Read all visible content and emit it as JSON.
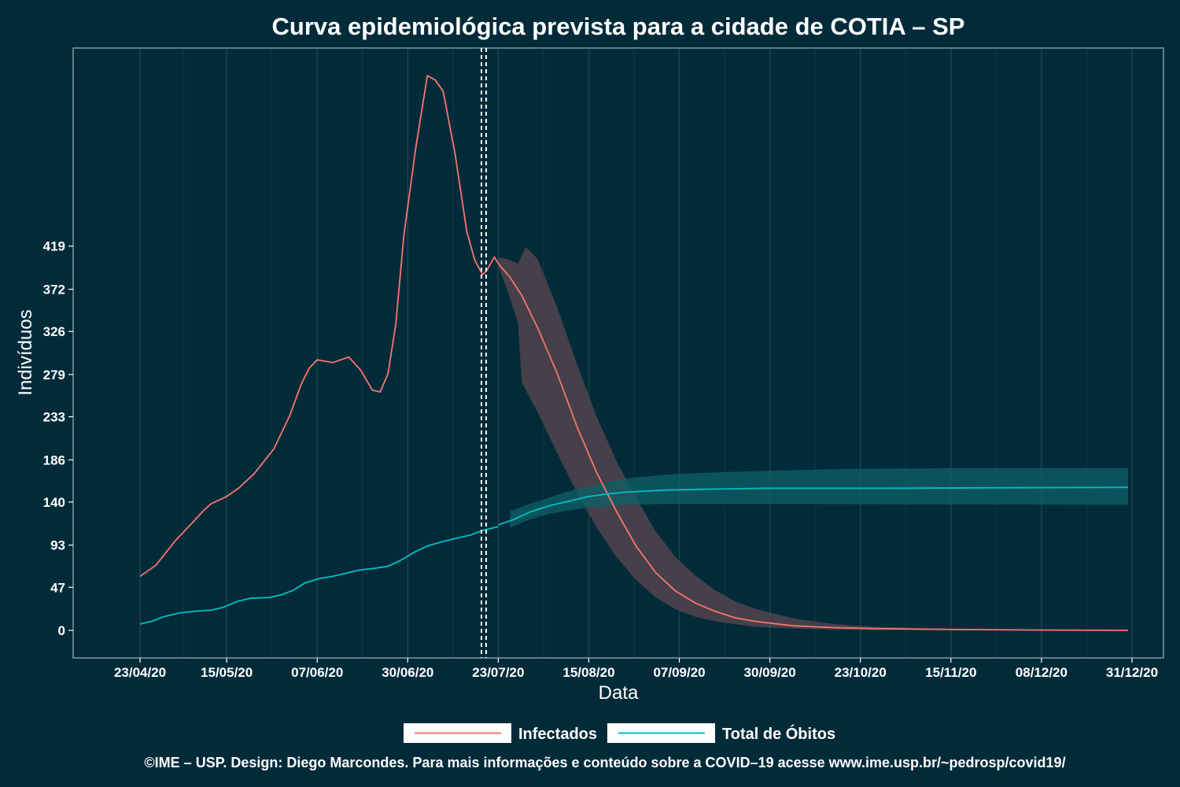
{
  "chart_data": {
    "type": "line",
    "title": "Curva epidemiológica prevista para a cidade de COTIA – SP",
    "xlabel": "Data",
    "ylabel": "Indivíduos",
    "x_ticks": [
      "23/04/20",
      "15/05/20",
      "07/06/20",
      "30/06/20",
      "23/07/20",
      "15/08/20",
      "07/09/20",
      "30/09/20",
      "23/10/20",
      "15/11/20",
      "08/12/20",
      "31/12/20"
    ],
    "y_ticks": [
      "0",
      "47",
      "93",
      "140",
      "186",
      "233",
      "279",
      "326",
      "372",
      "419"
    ],
    "ylim": [
      -30,
      635
    ],
    "xlim": [
      "2020-04-06",
      "2021-01-08"
    ],
    "grid": "vertical",
    "legend_position": "bottom",
    "forecast_start": "2020-07-22",
    "series": [
      {
        "name": "Infectados",
        "color": "#f8766d",
        "band_color": "#4d434b",
        "observed": [
          [
            "2020-04-23",
            59
          ],
          [
            "2020-04-27",
            71
          ],
          [
            "2020-05-02",
            98
          ],
          [
            "2020-05-06",
            116
          ],
          [
            "2020-05-09",
            130
          ],
          [
            "2020-05-11",
            138
          ],
          [
            "2020-05-15",
            146
          ],
          [
            "2020-05-18",
            155
          ],
          [
            "2020-05-22",
            171
          ],
          [
            "2020-05-27",
            198
          ],
          [
            "2020-05-31",
            234
          ],
          [
            "2020-06-03",
            269
          ],
          [
            "2020-06-05",
            286
          ],
          [
            "2020-06-07",
            295
          ],
          [
            "2020-06-11",
            292
          ],
          [
            "2020-06-15",
            298
          ],
          [
            "2020-06-18",
            284
          ],
          [
            "2020-06-21",
            262
          ],
          [
            "2020-06-23",
            260
          ],
          [
            "2020-06-25",
            280
          ],
          [
            "2020-06-27",
            335
          ],
          [
            "2020-06-29",
            430
          ],
          [
            "2020-07-02",
            525
          ],
          [
            "2020-07-05",
            605
          ],
          [
            "2020-07-07",
            600
          ],
          [
            "2020-07-09",
            588
          ],
          [
            "2020-07-12",
            520
          ],
          [
            "2020-07-15",
            435
          ],
          [
            "2020-07-17",
            404
          ],
          [
            "2020-07-19",
            388
          ],
          [
            "2020-07-20",
            392
          ],
          [
            "2020-07-22",
            407
          ],
          [
            "2020-07-23",
            400
          ]
        ],
        "forecast": [
          [
            "2020-07-23",
            400
          ],
          [
            "2020-07-26",
            385
          ],
          [
            "2020-07-29",
            365
          ],
          [
            "2020-08-02",
            330
          ],
          [
            "2020-08-07",
            280
          ],
          [
            "2020-08-12",
            222
          ],
          [
            "2020-08-17",
            172
          ],
          [
            "2020-08-22",
            130
          ],
          [
            "2020-08-27",
            92
          ],
          [
            "2020-09-01",
            63
          ],
          [
            "2020-09-06",
            43
          ],
          [
            "2020-09-11",
            30
          ],
          [
            "2020-09-16",
            21
          ],
          [
            "2020-09-21",
            14
          ],
          [
            "2020-09-26",
            10
          ],
          [
            "2020-10-06",
            5
          ],
          [
            "2020-10-16",
            3
          ],
          [
            "2020-10-26",
            2
          ],
          [
            "2020-11-15",
            1
          ],
          [
            "2020-12-05",
            0.5
          ],
          [
            "2020-12-30",
            0
          ]
        ],
        "band_upper": [
          [
            "2020-07-23",
            407
          ],
          [
            "2020-07-26",
            404
          ],
          [
            "2020-07-28",
            400
          ],
          [
            "2020-07-30",
            418
          ],
          [
            "2020-08-02",
            405
          ],
          [
            "2020-08-07",
            352
          ],
          [
            "2020-08-12",
            290
          ],
          [
            "2020-08-17",
            233
          ],
          [
            "2020-08-22",
            185
          ],
          [
            "2020-08-27",
            145
          ],
          [
            "2020-09-01",
            108
          ],
          [
            "2020-09-06",
            80
          ],
          [
            "2020-09-11",
            60
          ],
          [
            "2020-09-16",
            44
          ],
          [
            "2020-09-21",
            32
          ],
          [
            "2020-09-26",
            24
          ],
          [
            "2020-10-06",
            13
          ],
          [
            "2020-10-16",
            7
          ],
          [
            "2020-10-26",
            4
          ],
          [
            "2020-11-15",
            2
          ],
          [
            "2020-12-05",
            1
          ],
          [
            "2020-12-30",
            0.5
          ]
        ],
        "band_lower": [
          [
            "2020-07-23",
            398
          ],
          [
            "2020-07-26",
            362
          ],
          [
            "2020-07-28",
            335
          ],
          [
            "2020-07-29",
            270
          ],
          [
            "2020-08-02",
            238
          ],
          [
            "2020-08-07",
            193
          ],
          [
            "2020-08-12",
            150
          ],
          [
            "2020-08-17",
            112
          ],
          [
            "2020-08-22",
            80
          ],
          [
            "2020-08-27",
            55
          ],
          [
            "2020-09-01",
            36
          ],
          [
            "2020-09-06",
            23
          ],
          [
            "2020-09-11",
            15
          ],
          [
            "2020-09-16",
            10
          ],
          [
            "2020-09-21",
            7
          ],
          [
            "2020-09-26",
            4
          ],
          [
            "2020-10-06",
            2
          ],
          [
            "2020-10-16",
            1
          ],
          [
            "2020-10-26",
            0.5
          ],
          [
            "2020-12-30",
            0
          ]
        ]
      },
      {
        "name": "Total de Óbitos",
        "color": "#00bfc4",
        "band_color": "#0e5f66",
        "observed": [
          [
            "2020-04-23",
            7
          ],
          [
            "2020-04-26",
            10
          ],
          [
            "2020-04-29",
            15
          ],
          [
            "2020-05-03",
            19
          ],
          [
            "2020-05-07",
            21
          ],
          [
            "2020-05-11",
            22
          ],
          [
            "2020-05-14",
            25
          ],
          [
            "2020-05-18",
            32
          ],
          [
            "2020-05-21",
            35
          ],
          [
            "2020-05-26",
            36
          ],
          [
            "2020-05-29",
            39
          ],
          [
            "2020-06-01",
            44
          ],
          [
            "2020-06-04",
            52
          ],
          [
            "2020-06-08",
            57
          ],
          [
            "2020-06-11",
            59
          ],
          [
            "2020-06-14",
            62
          ],
          [
            "2020-06-18",
            66
          ],
          [
            "2020-06-22",
            68
          ],
          [
            "2020-06-25",
            70
          ],
          [
            "2020-06-28",
            76
          ],
          [
            "2020-07-02",
            86
          ],
          [
            "2020-07-05",
            92
          ],
          [
            "2020-07-09",
            97
          ],
          [
            "2020-07-13",
            101
          ],
          [
            "2020-07-16",
            104
          ],
          [
            "2020-07-19",
            109
          ],
          [
            "2020-07-23",
            113
          ]
        ],
        "forecast": [
          [
            "2020-07-23",
            115
          ],
          [
            "2020-07-27",
            121
          ],
          [
            "2020-07-31",
            129
          ],
          [
            "2020-08-05",
            136
          ],
          [
            "2020-08-10",
            141
          ],
          [
            "2020-08-15",
            146
          ],
          [
            "2020-08-20",
            149
          ],
          [
            "2020-08-25",
            151
          ],
          [
            "2020-08-30",
            152
          ],
          [
            "2020-09-04",
            153
          ],
          [
            "2020-09-14",
            154
          ],
          [
            "2020-09-29",
            155
          ],
          [
            "2020-10-29",
            155
          ],
          [
            "2020-12-30",
            156
          ]
        ],
        "band_upper": [
          [
            "2020-07-26",
            130
          ],
          [
            "2020-07-31",
            138
          ],
          [
            "2020-08-05",
            145
          ],
          [
            "2020-08-10",
            152
          ],
          [
            "2020-08-15",
            157
          ],
          [
            "2020-08-20",
            162
          ],
          [
            "2020-08-25",
            166
          ],
          [
            "2020-08-30",
            168
          ],
          [
            "2020-09-04",
            170
          ],
          [
            "2020-09-14",
            172
          ],
          [
            "2020-09-29",
            174
          ],
          [
            "2020-10-19",
            176
          ],
          [
            "2020-11-20",
            177
          ],
          [
            "2020-12-30",
            177
          ]
        ],
        "band_lower": [
          [
            "2020-07-26",
            112
          ],
          [
            "2020-07-31",
            121
          ],
          [
            "2020-08-05",
            127
          ],
          [
            "2020-08-10",
            131
          ],
          [
            "2020-08-15",
            134
          ],
          [
            "2020-08-20",
            136
          ],
          [
            "2020-08-25",
            137
          ],
          [
            "2020-09-04",
            138
          ],
          [
            "2020-09-19",
            138
          ],
          [
            "2020-12-30",
            137
          ]
        ]
      }
    ],
    "caption": "©IME – USP. Design: Diego Marcondes. Para mais informações e conteúdo sobre a COVID–19 acesse www.ime.usp.br/~pedrosp/covid19/"
  }
}
